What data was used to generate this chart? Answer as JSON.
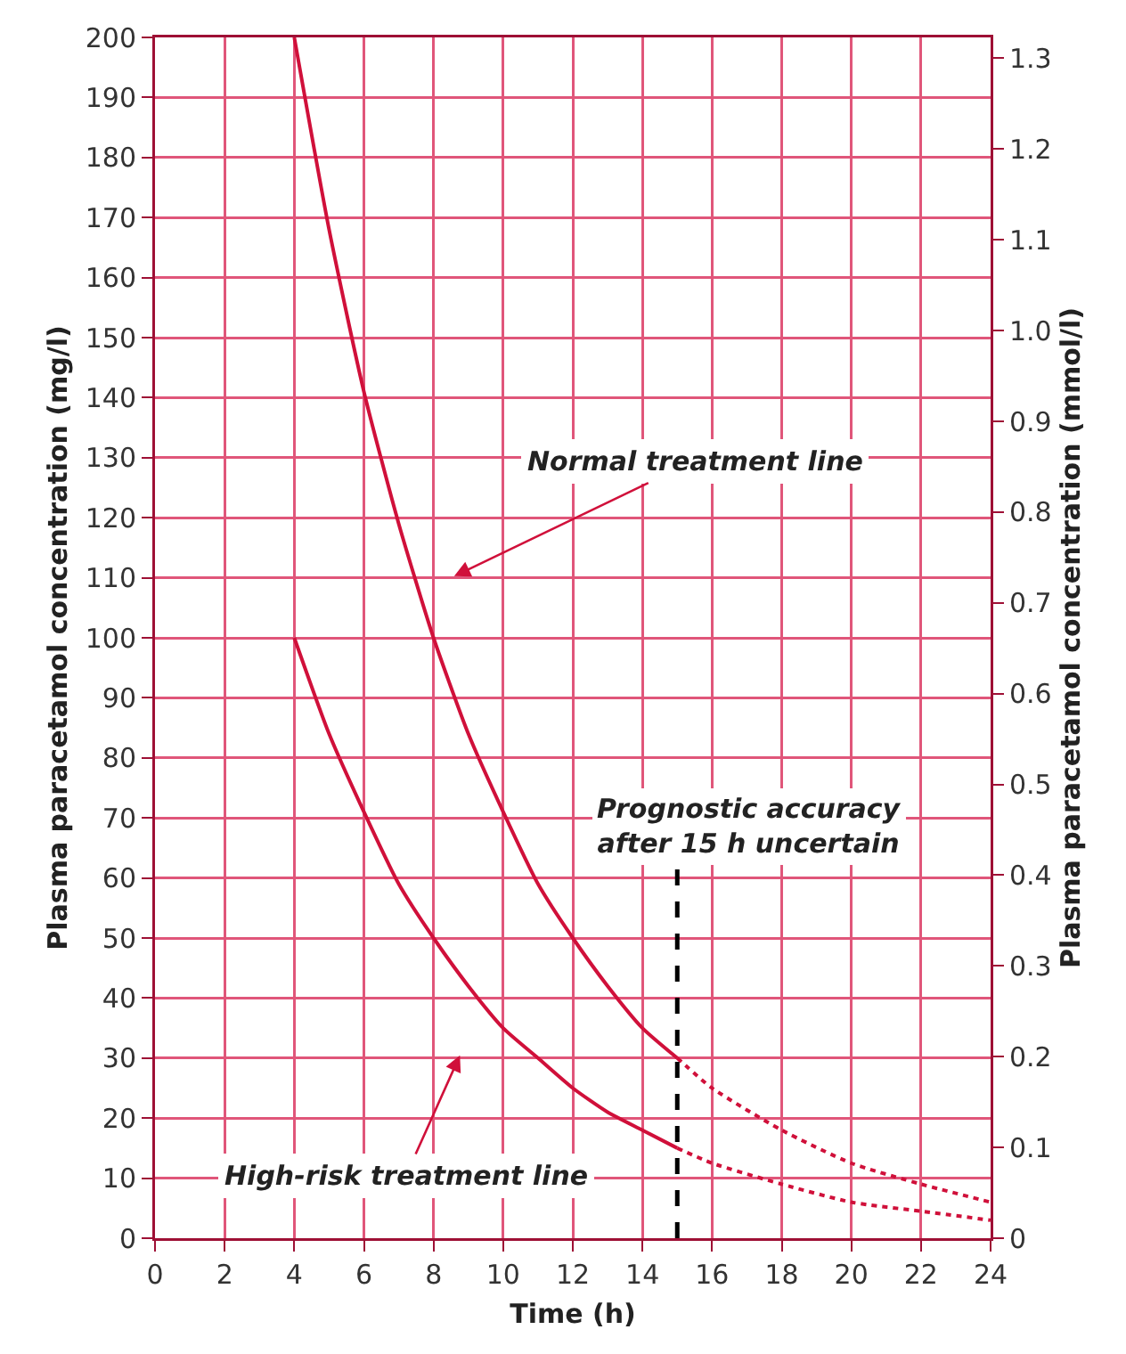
{
  "chart_data": {
    "type": "line",
    "xlabel": "Time (h)",
    "ylabel": "Plasma paracetamol concentration (mg/l)",
    "y2label": "Plasma paracetamol concentration (mmol/l)",
    "series": [
      {
        "color": "#d0103a",
        "line_style": "solid",
        "x": [
          4,
          5,
          6,
          7,
          8,
          9,
          10,
          11,
          12,
          13,
          14,
          15
        ],
        "values": [
          200,
          168,
          141,
          119,
          100,
          84,
          71,
          59,
          50,
          42,
          35,
          30
        ]
      },
      {
        "color": "#d0103a",
        "line_style": "dotted",
        "x": [
          15,
          16,
          18,
          20,
          22,
          24
        ],
        "values": [
          30,
          25,
          18,
          12.5,
          9,
          6
        ]
      },
      {
        "color": "#d0103a",
        "line_style": "solid",
        "x": [
          4,
          5,
          6,
          7,
          8,
          9,
          10,
          11,
          12,
          13,
          14,
          15
        ],
        "values": [
          100,
          84,
          71,
          59,
          50,
          42,
          35,
          30,
          25,
          21,
          18,
          15
        ]
      },
      {
        "color": "#d0103a",
        "line_style": "dotted",
        "x": [
          15,
          16,
          18,
          20,
          22,
          24
        ],
        "values": [
          15,
          12.5,
          9,
          6,
          4.5,
          3
        ]
      }
    ],
    "xlim": [
      0,
      24
    ],
    "xticks": [
      0,
      2,
      4,
      6,
      8,
      10,
      12,
      14,
      16,
      18,
      20,
      22,
      24
    ],
    "ylim": [
      0,
      200
    ],
    "yticks": [
      0,
      10,
      20,
      30,
      40,
      50,
      60,
      70,
      80,
      90,
      100,
      110,
      120,
      130,
      140,
      150,
      160,
      170,
      180,
      190,
      200
    ],
    "y2lim": [
      0,
      1.323
    ],
    "y2ticks": [
      0,
      0.1,
      0.2,
      0.3,
      0.4,
      0.5,
      0.6,
      0.7,
      0.8,
      0.9,
      {
        "value": 1,
        "label": "1.0"
      },
      1.1,
      1.2,
      1.3
    ],
    "grid": true,
    "marker": "none",
    "ref_lines": [
      {
        "axis": "x",
        "value": 15,
        "label": "Prognostic accuracy\nafter 15 h uncertain",
        "color": "#000000",
        "line_style": "dashed"
      }
    ],
    "annotations": [
      "Normal treatment line",
      "High-risk treatment line"
    ]
  }
}
